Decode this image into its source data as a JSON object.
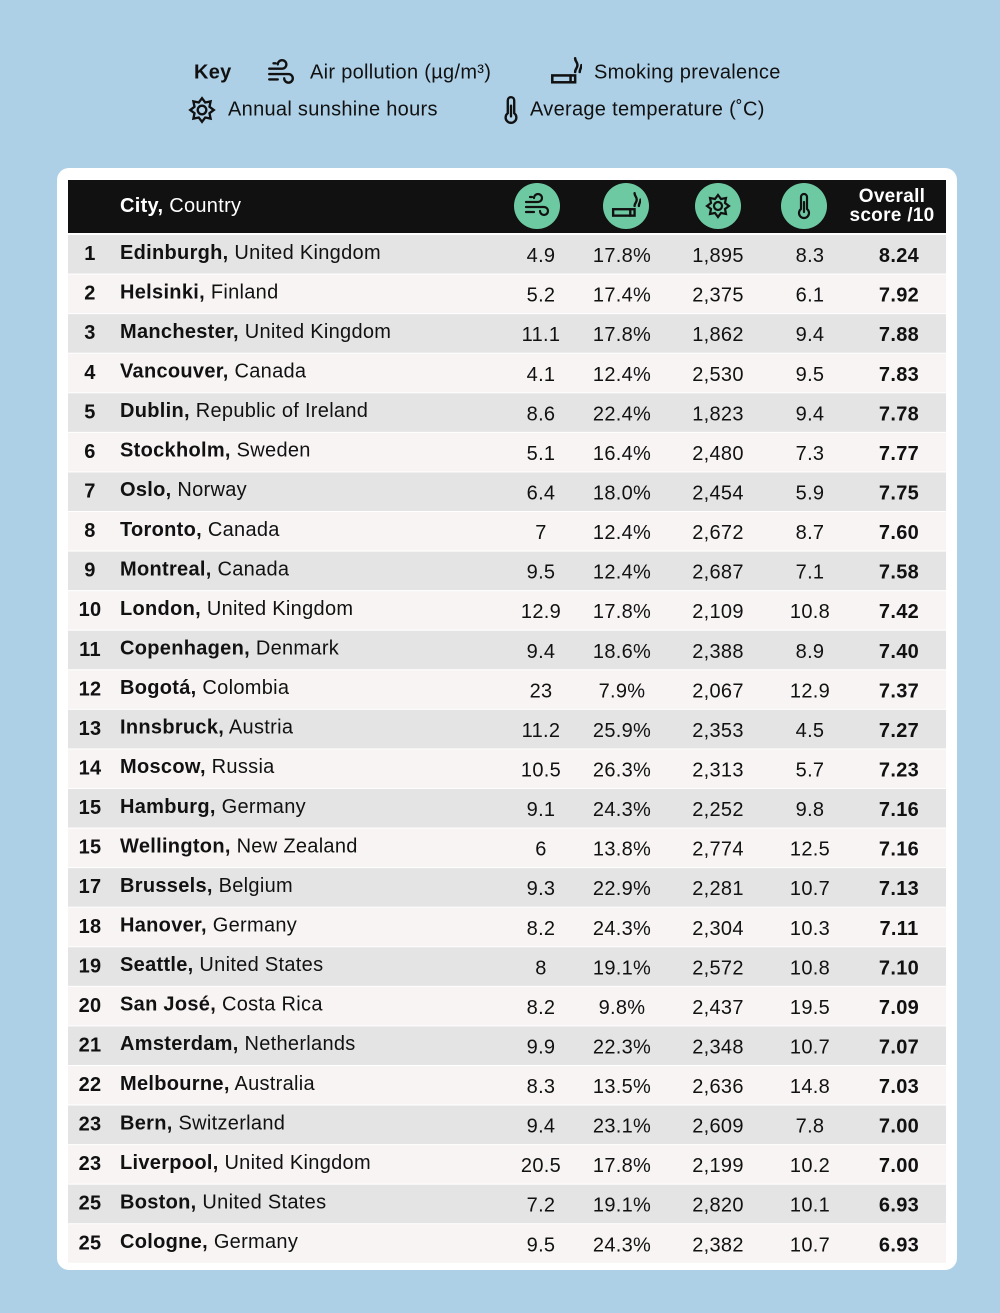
{
  "key": {
    "title": "Key",
    "items": [
      "Air pollution (µg/m³)",
      "Smoking prevalence",
      "Annual sunshine hours",
      "Average temperature (˚C)"
    ]
  },
  "table": {
    "header": {
      "city": "City,",
      "country": "Country",
      "score": [
        "Overall",
        "score /10"
      ]
    },
    "rows": [
      [
        "1",
        "Edinburgh,",
        "United Kingdom",
        "4.9",
        "17.8%",
        "1,895",
        "8.3",
        "8.24"
      ],
      [
        "2",
        "Helsinki,",
        "Finland",
        "5.2",
        "17.4%",
        "2,375",
        "6.1",
        "7.92"
      ],
      [
        "3",
        "Manchester,",
        "United Kingdom",
        "11.1",
        "17.8%",
        "1,862",
        "9.4",
        "7.88"
      ],
      [
        "4",
        "Vancouver,",
        "Canada",
        "4.1",
        "12.4%",
        "2,530",
        "9.5",
        "7.83"
      ],
      [
        "5",
        "Dublin,",
        "Republic of Ireland",
        "8.6",
        "22.4%",
        "1,823",
        "9.4",
        "7.78"
      ],
      [
        "6",
        "Stockholm,",
        "Sweden",
        "5.1",
        "16.4%",
        "2,480",
        "7.3",
        "7.77"
      ],
      [
        "7",
        "Oslo,",
        "Norway",
        "6.4",
        "18.0%",
        "2,454",
        "5.9",
        "7.75"
      ],
      [
        "8",
        "Toronto,",
        "Canada",
        "7",
        "12.4%",
        "2,672",
        "8.7",
        "7.60"
      ],
      [
        "9",
        "Montreal,",
        "Canada",
        "9.5",
        "12.4%",
        "2,687",
        "7.1",
        "7.58"
      ],
      [
        "10",
        "London,",
        "United Kingdom",
        "12.9",
        "17.8%",
        "2,109",
        "10.8",
        "7.42"
      ],
      [
        "11",
        "Copenhagen,",
        "Denmark",
        "9.4",
        "18.6%",
        "2,388",
        "8.9",
        "7.40"
      ],
      [
        "12",
        "Bogotá,",
        "Colombia",
        "23",
        "7.9%",
        "2,067",
        "12.9",
        "7.37"
      ],
      [
        "13",
        "Innsbruck,",
        "Austria",
        "11.2",
        "25.9%",
        "2,353",
        "4.5",
        "7.27"
      ],
      [
        "14",
        "Moscow,",
        "Russia",
        "10.5",
        "26.3%",
        "2,313",
        "5.7",
        "7.23"
      ],
      [
        "15",
        "Hamburg,",
        "Germany",
        "9.1",
        "24.3%",
        "2,252",
        "9.8",
        "7.16"
      ],
      [
        "15",
        "Wellington,",
        "New Zealand",
        "6",
        "13.8%",
        "2,774",
        "12.5",
        "7.16"
      ],
      [
        "17",
        "Brussels,",
        "Belgium",
        "9.3",
        "22.9%",
        "2,281",
        "10.7",
        "7.13"
      ],
      [
        "18",
        "Hanover,",
        "Germany",
        "8.2",
        "24.3%",
        "2,304",
        "10.3",
        "7.11"
      ],
      [
        "19",
        "Seattle,",
        "United States",
        "8",
        "19.1%",
        "2,572",
        "10.8",
        "7.10"
      ],
      [
        "20",
        "San José,",
        "Costa Rica",
        "8.2",
        "9.8%",
        "2,437",
        "19.5",
        "7.09"
      ],
      [
        "21",
        "Amsterdam,",
        "Netherlands",
        "9.9",
        "22.3%",
        "2,348",
        "10.7",
        "7.07"
      ],
      [
        "22",
        "Melbourne,",
        "Australia",
        "8.3",
        "13.5%",
        "2,636",
        "14.8",
        "7.03"
      ],
      [
        "23",
        "Bern,",
        "Switzerland",
        "9.4",
        "23.1%",
        "2,609",
        "7.8",
        "7.00"
      ],
      [
        "23",
        "Liverpool,",
        "United Kingdom",
        "20.5",
        "17.8%",
        "2,199",
        "10.2",
        "7.00"
      ],
      [
        "25",
        "Boston,",
        "United States",
        "7.2",
        "19.1%",
        "2,820",
        "10.1",
        "6.93"
      ],
      [
        "25",
        "Cologne,",
        "Germany",
        "9.5",
        "24.3%",
        "2,382",
        "10.7",
        "6.93"
      ]
    ]
  }
}
